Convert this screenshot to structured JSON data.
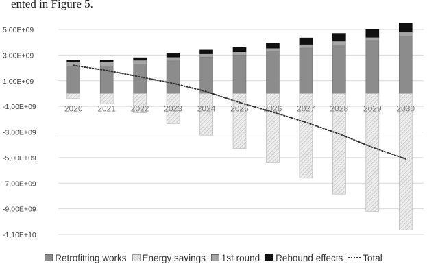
{
  "caption": "ented in Figure 5.",
  "chart_data": {
    "type": "bar",
    "stacked": true,
    "title": "",
    "xlabel": "",
    "ylabel": "",
    "categories": [
      "2020",
      "2021",
      "2022",
      "2023",
      "2024",
      "2025",
      "2026",
      "2027",
      "2028",
      "2029",
      "2030"
    ],
    "ylim": [
      -11000000000.0,
      5500000000.0
    ],
    "yticks": [
      "5,00E+09",
      "3,00E+09",
      "1,00E+09",
      "-1,00E+09",
      "-3,00E+09",
      "-5,00E+09",
      "-7,00E+09",
      "-9,00E+09",
      "-1,10E+10"
    ],
    "grid": true,
    "legend_position": "bottom",
    "series": [
      {
        "name": "Retrofitting works",
        "values": [
          2150000000.0,
          2150000000.0,
          2300000000.0,
          2550000000.0,
          2850000000.0,
          3000000000.0,
          3250000000.0,
          3550000000.0,
          3800000000.0,
          4100000000.0,
          4500000000.0
        ]
      },
      {
        "name": "Energy savings",
        "values": [
          -400000000.0,
          -800000000.0,
          -1500000000.0,
          -2350000000.0,
          -3250000000.0,
          -4300000000.0,
          -5400000000.0,
          -6600000000.0,
          -7850000000.0,
          -9200000000.0,
          -10650000000.0
        ]
      },
      {
        "name": "1st round",
        "values": [
          300000000.0,
          300000000.0,
          300000000.0,
          300000000.0,
          250000000.0,
          250000000.0,
          300000000.0,
          300000000.0,
          300000000.0,
          300000000.0,
          300000000.0
        ]
      },
      {
        "name": "Rebound effects",
        "values": [
          150000000.0,
          150000000.0,
          200000000.0,
          300000000.0,
          300000000.0,
          350000000.0,
          400000000.0,
          500000000.0,
          600000000.0,
          600000000.0,
          700000000.0
        ]
      },
      {
        "name": "Total",
        "type": "line",
        "values": [
          2200000000.0,
          1800000000.0,
          1300000000.0,
          800000000.0,
          150000000.0,
          -700000000.0,
          -1450000000.0,
          -2250000000.0,
          -3150000000.0,
          -4200000000.0,
          -5100000000.0
        ]
      }
    ],
    "colors": {
      "retrofitting": "#8c8c8c",
      "energy": "#dcdcdc",
      "first_round": "#a6a6a6",
      "rebound": "#111111",
      "total": "#333333"
    }
  }
}
